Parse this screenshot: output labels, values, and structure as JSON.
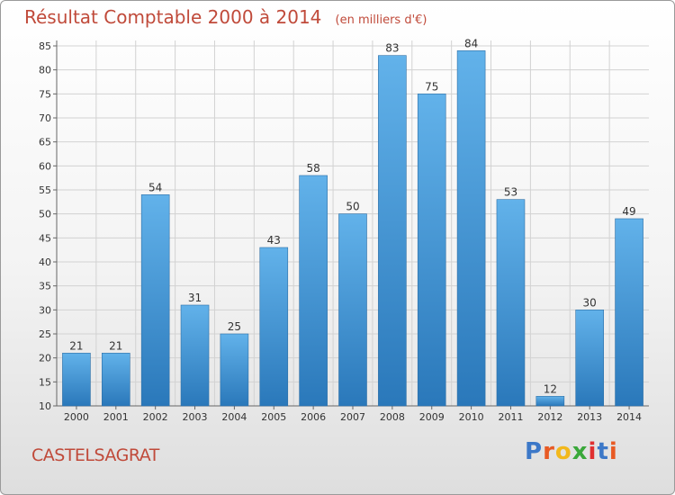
{
  "header": {
    "title": "Résultat Comptable 2000 à 2014",
    "subtitle": "(en milliers d'€)"
  },
  "footer": {
    "commune": "CASTELSAGRAT",
    "logo_letters": [
      {
        "ch": "P",
        "color": "#3c78c8"
      },
      {
        "ch": "r",
        "color": "#e85a24"
      },
      {
        "ch": "o",
        "color": "#f2b81c"
      },
      {
        "ch": "x",
        "color": "#3aa83a"
      },
      {
        "ch": "i",
        "color": "#e03030"
      },
      {
        "ch": "t",
        "color": "#3c78c8"
      },
      {
        "ch": "i",
        "color": "#e85a24"
      }
    ]
  },
  "chart_data": {
    "type": "bar",
    "title": "Résultat Comptable 2000 à 2014",
    "subtitle": "(en milliers d'€)",
    "categories": [
      "2000",
      "2001",
      "2002",
      "2003",
      "2004",
      "2005",
      "2006",
      "2007",
      "2008",
      "2009",
      "2010",
      "2011",
      "2012",
      "2013",
      "2014"
    ],
    "values": [
      21,
      21,
      54,
      31,
      25,
      43,
      58,
      50,
      83,
      75,
      84,
      53,
      12,
      30,
      49
    ],
    "data_labels": [
      "21",
      "21",
      "54",
      "31",
      "25",
      "43",
      "58",
      "50",
      "83",
      "75",
      "84",
      "53",
      "12",
      "30",
      "49"
    ],
    "ylim": [
      10,
      85
    ],
    "yticks": [
      10,
      15,
      20,
      25,
      30,
      35,
      40,
      45,
      50,
      55,
      60,
      65,
      70,
      75,
      80,
      85
    ],
    "grid": true,
    "bar_color_top": "#62b2ea",
    "bar_color_bottom": "#2a78ba",
    "xlabel": "",
    "ylabel": ""
  }
}
